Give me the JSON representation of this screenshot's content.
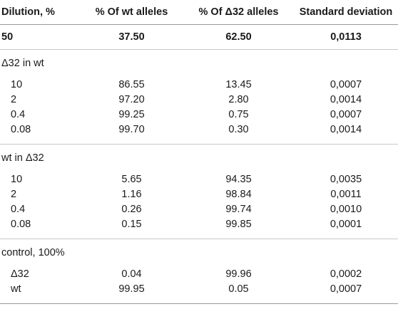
{
  "table": {
    "headers": [
      "Dilution, %",
      "% Of wt alleles",
      "% Of Δ32 alleles",
      "Standard deviation"
    ],
    "base_row": [
      "50",
      "37.50",
      "62.50",
      "0,0113"
    ],
    "groups": [
      {
        "label": "Δ32 in wt",
        "rows": [
          [
            "10",
            "86.55",
            "13.45",
            "0,0007"
          ],
          [
            "2",
            "97.20",
            "2.80",
            "0,0014"
          ],
          [
            "0.4",
            "99.25",
            "0.75",
            "0,0007"
          ],
          [
            "0.08",
            "99.70",
            "0.30",
            "0,0014"
          ]
        ]
      },
      {
        "label": "wt in Δ32",
        "rows": [
          [
            "10",
            "5.65",
            "94.35",
            "0,0035"
          ],
          [
            "2",
            "1.16",
            "98.84",
            "0,0011"
          ],
          [
            "0.4",
            "0.26",
            "99.74",
            "0,0010"
          ],
          [
            "0.08",
            "0.15",
            "99.85",
            "0,0001"
          ]
        ]
      },
      {
        "label": "control, 100%",
        "rows": [
          [
            "Δ32",
            "0.04",
            "99.96",
            "0,0002"
          ],
          [
            "wt",
            "99.95",
            "0.05",
            "0,0007"
          ]
        ]
      }
    ]
  }
}
